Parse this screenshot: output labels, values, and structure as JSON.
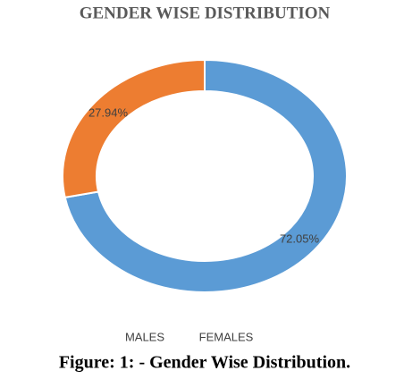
{
  "chart_data": {
    "type": "donut",
    "title": "GENDER WISE DISTRIBUTION",
    "categories": [
      "MALES",
      "FEMALES"
    ],
    "values": [
      72.05,
      27.94
    ],
    "value_labels": [
      "72.05%",
      "27.94%"
    ],
    "colors": [
      "#5b9bd5",
      "#ed7d31"
    ],
    "caption": "Figure: 1: - Gender Wise Distribution."
  }
}
